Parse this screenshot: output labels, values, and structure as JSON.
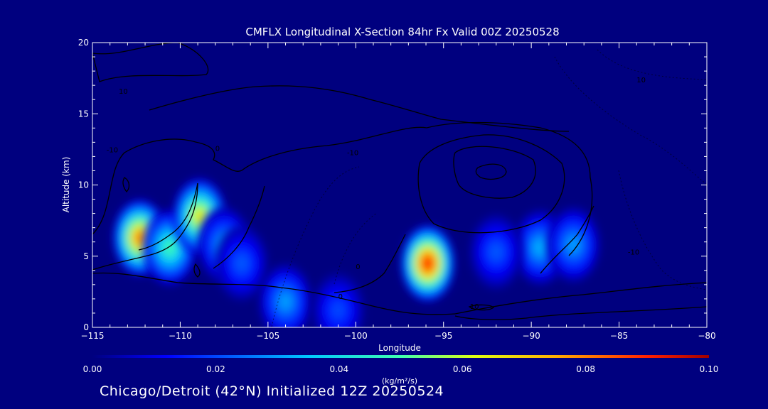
{
  "chart_data": {
    "type": "heatmap",
    "title": "CMFLX Longitudinal X-Section 84hr  Fx Valid 00Z 20250528",
    "xlabel": "Longitude",
    "ylabel": "Altitude (km)",
    "xlim": [
      -115,
      -80
    ],
    "ylim": [
      0,
      20
    ],
    "x_ticks": [
      -115,
      -110,
      -105,
      -100,
      -95,
      -90,
      -85,
      -80
    ],
    "y_ticks": [
      0,
      5,
      10,
      15,
      20
    ],
    "colorbar": {
      "label": "(kg/m²/s)",
      "range": [
        0.0,
        0.1
      ],
      "ticks": [
        "0.00",
        "0.02",
        "0.04",
        "0.06",
        "0.08",
        "0.10"
      ]
    },
    "blobs": [
      {
        "lon": -112.3,
        "alt": 6.3,
        "peak": 0.078
      },
      {
        "lon": -110.6,
        "alt": 5.6,
        "peak": 0.048
      },
      {
        "lon": -108.9,
        "alt": 7.8,
        "peak": 0.065
      },
      {
        "lon": -107.5,
        "alt": 5.8,
        "peak": 0.03
      },
      {
        "lon": -106.5,
        "alt": 4.5,
        "peak": 0.022
      },
      {
        "lon": -95.9,
        "alt": 4.5,
        "peak": 0.09
      },
      {
        "lon": -89.5,
        "alt": 5.6,
        "peak": 0.032
      },
      {
        "lon": -87.6,
        "alt": 5.8,
        "peak": 0.03
      },
      {
        "lon": -92.0,
        "alt": 5.3,
        "peak": 0.022
      },
      {
        "lon": -104.0,
        "alt": 1.8,
        "peak": 0.03
      },
      {
        "lon": -101.0,
        "alt": 1.2,
        "peak": 0.02
      }
    ],
    "contour_labels": [
      "0",
      "10",
      "-10",
      "-10",
      "0",
      "10",
      "-10",
      "10",
      "0"
    ]
  },
  "footer": {
    "caption": "Chicago/Detroit (42°N) Initialized 12Z 20250524"
  }
}
